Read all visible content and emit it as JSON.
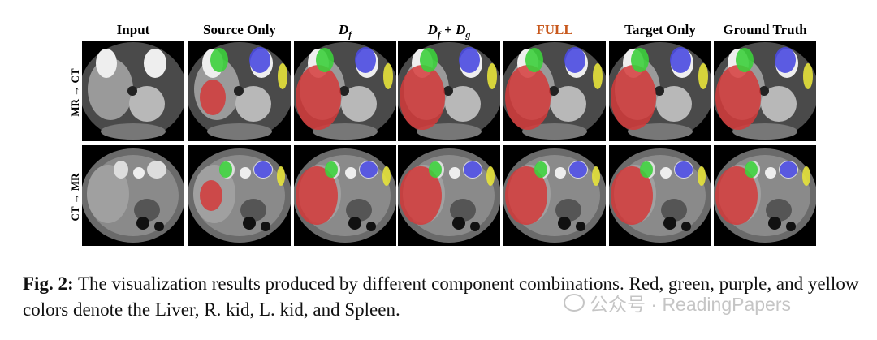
{
  "figure": {
    "columns": [
      {
        "label": "Input",
        "accent": false
      },
      {
        "label": "Source Only",
        "accent": false
      },
      {
        "label": "D",
        "sub": "f",
        "accent": false,
        "math": true
      },
      {
        "label": "D",
        "sub": "f",
        "plus": " + ",
        "label2": "D",
        "sub2": "g",
        "accent": false,
        "math": true
      },
      {
        "label": "FULL",
        "accent": true
      },
      {
        "label": "Target Only",
        "accent": false
      },
      {
        "label": "Ground Truth",
        "accent": false
      }
    ],
    "rows": [
      {
        "label": "MR → CT"
      },
      {
        "label": "CT → MR"
      }
    ]
  },
  "colors": {
    "liver": "#d43a3a",
    "r_kid": "#3ccf3c",
    "l_kid": "#4a4ae0",
    "spleen": "#e6e23a",
    "accent": "#c8581c"
  },
  "caption": {
    "label": "Fig. 2:",
    "text": " The visualization results produced by different component combinations. Red, green, purple, and yellow colors denote the Liver, R. kid, L. kid, and Spleen."
  },
  "watermark": {
    "text": "公众号 · ReadingPapers"
  }
}
